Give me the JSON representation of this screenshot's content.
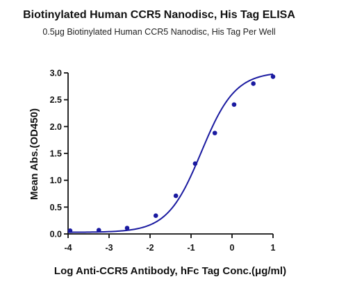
{
  "chart_data": {
    "type": "scatter",
    "title": "Biotinylated Human CCR5 Nanodisc, His Tag ELISA",
    "subtitle": "0.5μg Biotinylated Human CCR5 Nanodisc, His Tag Per Well",
    "xlabel": "Log  Anti-CCR5 Antibody, hFc Tag Conc.(μg/ml)",
    "ylabel": "Mean Abs.(OD450)",
    "xlim": [
      -4,
      1
    ],
    "ylim": [
      0,
      3.0
    ],
    "x_ticks": [
      -4,
      -3,
      -2,
      -1,
      0,
      1
    ],
    "x_tick_labels": [
      "-4",
      "-3",
      "-2",
      "-1",
      "0",
      "1"
    ],
    "y_ticks": [
      0,
      0.5,
      1.0,
      1.5,
      2.0,
      2.5,
      3.0
    ],
    "y_tick_labels": [
      "0.0",
      "0.5",
      "1.0",
      "1.5",
      "2.0",
      "2.5",
      "3.0"
    ],
    "grid": false,
    "legend": "none",
    "color": "#1a1aa0",
    "series": [
      {
        "x": [
          -3.95,
          -3.25,
          -2.56,
          -1.86,
          -1.37,
          -0.9,
          -0.42,
          0.05,
          0.52,
          1.0
        ],
        "y": [
          0.06,
          0.07,
          0.11,
          0.34,
          0.71,
          1.31,
          1.88,
          2.41,
          2.8,
          2.93
        ]
      }
    ],
    "fit": {
      "model": "four-parameter logistic",
      "bottom": 0.03,
      "top": 3.02,
      "log_ec50": -0.75,
      "hill": 1.05
    }
  }
}
